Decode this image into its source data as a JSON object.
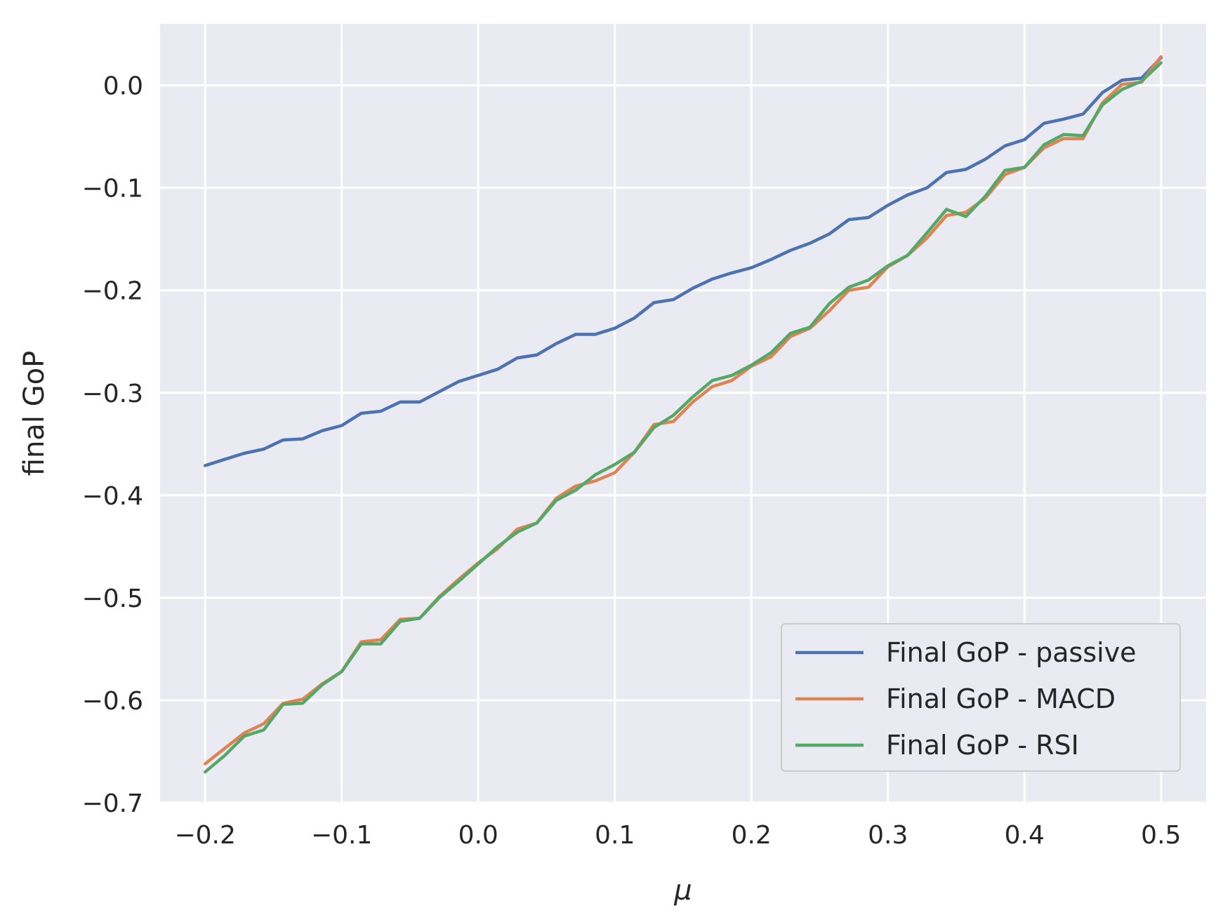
{
  "chart_data": {
    "type": "line",
    "title": "",
    "xlabel": "μ",
    "ylabel": "final GoP",
    "xlim": [
      -0.233,
      0.533
    ],
    "ylim": [
      -0.7,
      0.06
    ],
    "xticks": [
      -0.2,
      -0.1,
      0.0,
      0.1,
      0.2,
      0.3,
      0.4,
      0.5
    ],
    "xtick_labels": [
      "−0.2",
      "−0.1",
      "0.0",
      "0.1",
      "0.2",
      "0.3",
      "0.4",
      "0.5"
    ],
    "yticks": [
      0.0,
      -0.1,
      -0.2,
      -0.3,
      -0.4,
      -0.5,
      -0.6,
      -0.7
    ],
    "ytick_labels": [
      "0.0",
      "−0.1",
      "−0.2",
      "−0.3",
      "−0.4",
      "−0.5",
      "−0.6",
      "−0.7"
    ],
    "grid": true,
    "legend_position": "lower-right",
    "x": [
      -0.2,
      -0.1857,
      -0.1714,
      -0.1571,
      -0.1429,
      -0.1286,
      -0.1143,
      -0.1,
      -0.0857,
      -0.0714,
      -0.0571,
      -0.0429,
      -0.0286,
      -0.0143,
      0.0,
      0.0143,
      0.0286,
      0.0429,
      0.0571,
      0.0714,
      0.0857,
      0.1,
      0.1143,
      0.1286,
      0.1429,
      0.1571,
      0.1714,
      0.1857,
      0.2,
      0.2143,
      0.2286,
      0.2429,
      0.2571,
      0.2714,
      0.2857,
      0.3,
      0.3143,
      0.3286,
      0.3429,
      0.3571,
      0.3714,
      0.3857,
      0.4,
      0.4143,
      0.4286,
      0.4429,
      0.4571,
      0.4714,
      0.4857,
      0.5
    ],
    "series": [
      {
        "name": "Final GoP - passive",
        "color": "#4c72b0",
        "values": [
          -0.371,
          -0.365,
          -0.359,
          -0.355,
          -0.346,
          -0.345,
          -0.337,
          -0.332,
          -0.32,
          -0.318,
          -0.309,
          -0.309,
          -0.299,
          -0.289,
          -0.283,
          -0.277,
          -0.266,
          -0.263,
          -0.252,
          -0.243,
          -0.243,
          -0.237,
          -0.227,
          -0.212,
          -0.209,
          -0.198,
          -0.189,
          -0.183,
          -0.178,
          -0.17,
          -0.161,
          -0.154,
          -0.145,
          -0.131,
          -0.129,
          -0.117,
          -0.107,
          -0.1,
          -0.085,
          -0.082,
          -0.072,
          -0.059,
          -0.053,
          -0.037,
          -0.033,
          -0.028,
          -0.007,
          0.005,
          0.007,
          0.027
        ]
      },
      {
        "name": "Final GoP - MACD",
        "color": "#dd8452",
        "values": [
          -0.662,
          -0.647,
          -0.632,
          -0.623,
          -0.603,
          -0.599,
          -0.584,
          -0.572,
          -0.543,
          -0.541,
          -0.521,
          -0.52,
          -0.499,
          -0.482,
          -0.466,
          -0.452,
          -0.433,
          -0.427,
          -0.403,
          -0.391,
          -0.386,
          -0.378,
          -0.358,
          -0.331,
          -0.328,
          -0.309,
          -0.294,
          -0.288,
          -0.274,
          -0.265,
          -0.245,
          -0.237,
          -0.22,
          -0.2,
          -0.197,
          -0.177,
          -0.166,
          -0.149,
          -0.127,
          -0.124,
          -0.11,
          -0.087,
          -0.08,
          -0.061,
          -0.052,
          -0.052,
          -0.017,
          0.001,
          0.003,
          0.028
        ]
      },
      {
        "name": "Final GoP - RSI",
        "color": "#55a868",
        "values": [
          -0.67,
          -0.654,
          -0.635,
          -0.629,
          -0.604,
          -0.603,
          -0.585,
          -0.572,
          -0.545,
          -0.545,
          -0.523,
          -0.52,
          -0.5,
          -0.484,
          -0.467,
          -0.45,
          -0.436,
          -0.427,
          -0.405,
          -0.395,
          -0.38,
          -0.37,
          -0.358,
          -0.334,
          -0.322,
          -0.304,
          -0.288,
          -0.283,
          -0.273,
          -0.261,
          -0.242,
          -0.236,
          -0.213,
          -0.197,
          -0.19,
          -0.176,
          -0.166,
          -0.144,
          -0.121,
          -0.128,
          -0.108,
          -0.083,
          -0.08,
          -0.058,
          -0.048,
          -0.049,
          -0.019,
          -0.004,
          0.004,
          0.022
        ]
      }
    ]
  }
}
